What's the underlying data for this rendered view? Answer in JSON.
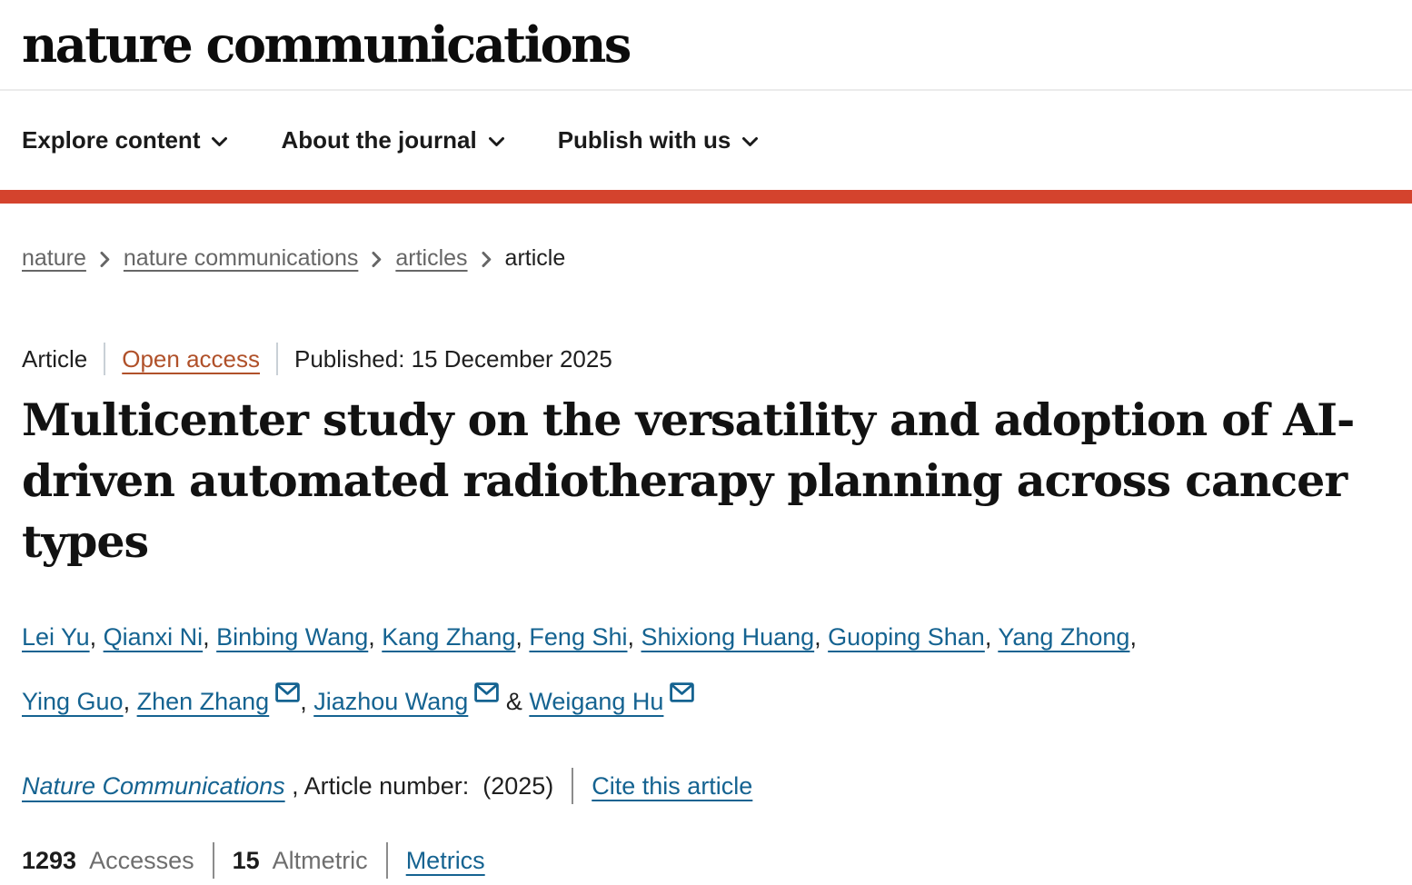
{
  "header": {
    "logo": "nature communications",
    "nav": [
      {
        "label": "Explore content"
      },
      {
        "label": "About the journal"
      },
      {
        "label": "Publish with us"
      }
    ]
  },
  "breadcrumbs": [
    {
      "label": "nature",
      "link": true
    },
    {
      "label": "nature communications",
      "link": true
    },
    {
      "label": "articles",
      "link": true
    },
    {
      "label": "article",
      "link": false
    }
  ],
  "article_meta": {
    "type": "Article",
    "access": "Open access",
    "published": "Published: 15 December 2025"
  },
  "title": "Multicenter study on the versatility and adoption of AI-driven automated radiotherapy planning across cancer types",
  "authors": {
    "line1": [
      {
        "name": "Lei Yu",
        "email": false,
        "sep": ", "
      },
      {
        "name": "Qianxi Ni",
        "email": false,
        "sep": ", "
      },
      {
        "name": "Binbing Wang",
        "email": false,
        "sep": ", "
      },
      {
        "name": "Kang Zhang",
        "email": false,
        "sep": ", "
      },
      {
        "name": "Feng Shi",
        "email": false,
        "sep": ", "
      },
      {
        "name": "Shixiong Huang",
        "email": false,
        "sep": ", "
      },
      {
        "name": "Guoping Shan",
        "email": false,
        "sep": ", "
      },
      {
        "name": "Yang Zhong",
        "email": false,
        "sep": ","
      }
    ],
    "line2": [
      {
        "name": "Ying Guo",
        "email": false,
        "sep": ", "
      },
      {
        "name": "Zhen Zhang",
        "email": true,
        "sep": ", "
      },
      {
        "name": "Jiazhou Wang",
        "email": true,
        "sep": " & "
      },
      {
        "name": "Weigang Hu",
        "email": true,
        "sep": ""
      }
    ]
  },
  "citation": {
    "journal": "Nature Communications",
    "article_number_text": " , Article number:  (2025)",
    "cite_link": "Cite this article"
  },
  "metrics": {
    "accesses_value": "1293",
    "accesses_label": "Accesses",
    "altmetric_value": "15",
    "altmetric_label": "Altmetric",
    "metrics_link": "Metrics"
  },
  "icons": {
    "nav_item_suffix": "chevron-down",
    "breadcrumb_separator": "chevron-right",
    "author_email": "envelope"
  },
  "colors": {
    "brand_red": "#d4432d",
    "link_blue": "#156391",
    "open_access": "#b0512a",
    "text_dark": "#1f1f1f",
    "text_gray": "#666666"
  }
}
